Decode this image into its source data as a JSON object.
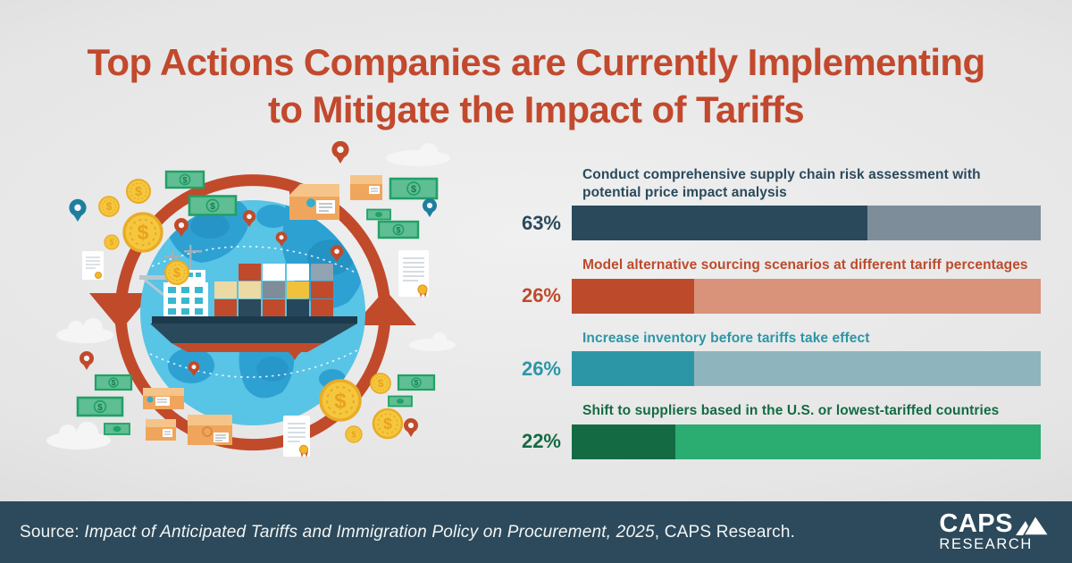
{
  "title": {
    "line1": "Top Actions Companies are Currently Implementing",
    "line2": "to Mitigate the Impact of Tariffs",
    "color": "#c2492d"
  },
  "chart_data": {
    "type": "bar",
    "orientation": "horizontal",
    "value_unit": "%",
    "xlim": [
      0,
      100
    ],
    "grid": false,
    "legend": false,
    "categories": [
      "Conduct comprehensive supply chain risk assessment with potential price impact analysis",
      "Model alternative sourcing scenarios at different tariff percentages",
      "Increase inventory before tariffs take effect",
      "Shift to suppliers based in the U.S. or lowest-tariffed countries"
    ],
    "values": [
      63,
      26,
      26,
      22
    ],
    "value_labels": [
      "63%",
      "26%",
      "26%",
      "22%"
    ],
    "items": [
      {
        "label": "Conduct comprehensive supply chain risk assessment with potential price impact analysis",
        "value": 63,
        "value_label": "63%",
        "color": "#2a4a5c",
        "track_color": "#7d8d9a"
      },
      {
        "label": "Model alternative sourcing scenarios at different tariff percentages",
        "value": 26,
        "value_label": "26%",
        "color": "#be4a2c",
        "track_color": "#d8937a"
      },
      {
        "label": "Increase inventory before tariffs take effect",
        "value": 26,
        "value_label": "26%",
        "color": "#2d96a6",
        "track_color": "#8eb5be"
      },
      {
        "label": "Shift to suppliers based in the U.S. or lowest-tariffed countries",
        "value": 22,
        "value_label": "22%",
        "color": "#146b43",
        "track_color": "#2bac71"
      }
    ]
  },
  "footer": {
    "source_prefix": "Source: ",
    "source_italic": "Impact of Anticipated Tariffs and Immigration Policy on Procurement, 2025",
    "source_suffix": ", CAPS Research.",
    "background": "#2c4a5b",
    "logo_line1": "CAPS",
    "logo_line2": "RESEARCH"
  },
  "illustration": {
    "description": "Globe with cargo container ship encircled by red trade-cycle arrows, surrounded by gold coins, green banknotes, location pins, parcels, certificates and clouds",
    "elements": [
      "circular-arrows",
      "globe",
      "cargo-ship",
      "coin-icon",
      "banknote-icon",
      "location-pin-icon",
      "parcel-icon",
      "document-icon",
      "cloud-icon"
    ],
    "colors": {
      "arrow_red": "#c14a2b",
      "globe_water": "#58c4e6",
      "globe_land": "#2ea1d3",
      "coin_gold": "#f5c73f",
      "banknote_green": "#5fbe93",
      "parcel_tan": "#f0a55c",
      "ship_hull_navy": "#2a4a5c"
    }
  }
}
